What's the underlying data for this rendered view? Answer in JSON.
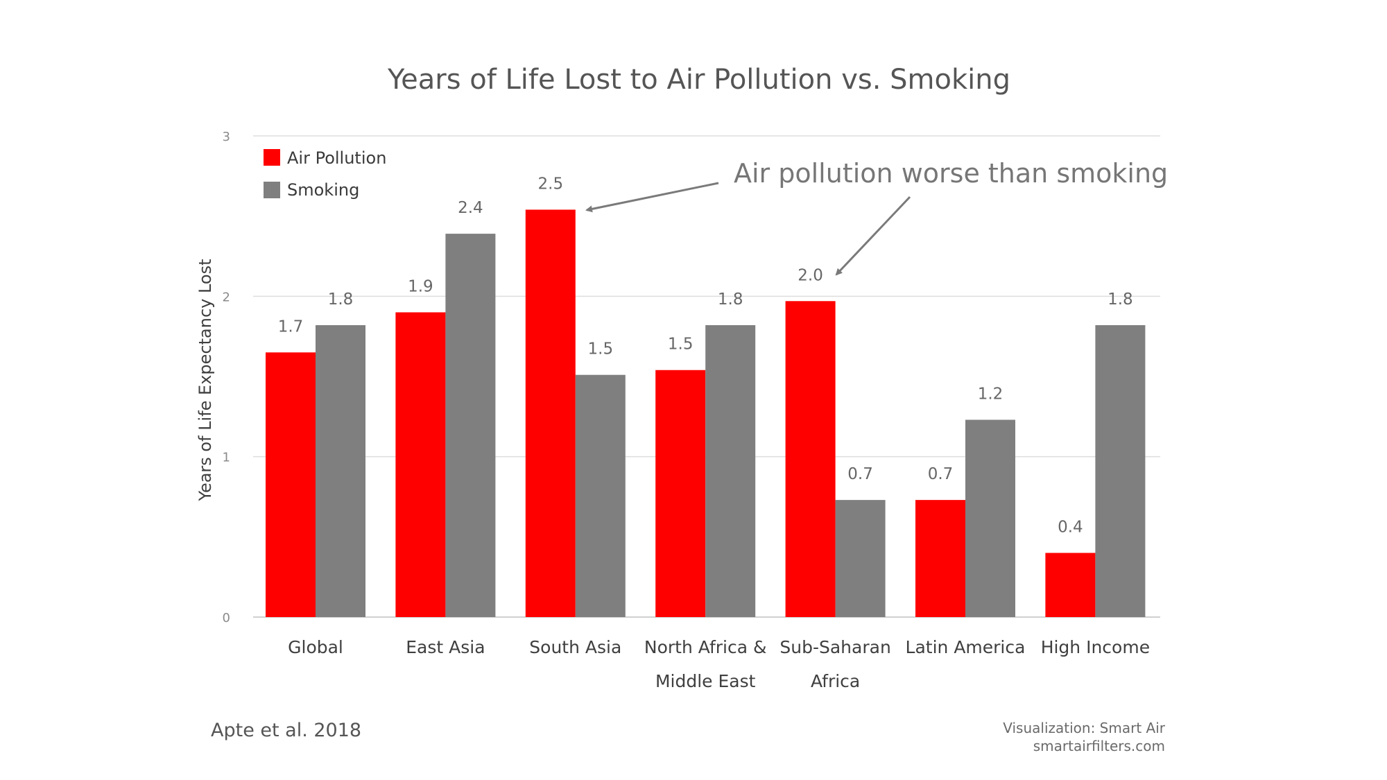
{
  "chart_data": {
    "type": "bar",
    "title": "Years of Life Lost to Air Pollution vs. Smoking",
    "ylabel": "Years of Life Expectancy Lost",
    "xlabel": "",
    "ylim": [
      0,
      3
    ],
    "yticks": [
      0,
      1,
      2,
      3
    ],
    "grid": true,
    "legend_position": "top-left",
    "categories": [
      [
        "Global"
      ],
      [
        "East Asia"
      ],
      [
        "South Asia"
      ],
      [
        "North Africa &",
        "Middle East"
      ],
      [
        "Sub-Saharan",
        "Africa"
      ],
      [
        "Latin America"
      ],
      [
        "High Income"
      ]
    ],
    "series": [
      {
        "name": "Air Pollution",
        "color": "#ff0000",
        "values": [
          1.65,
          1.9,
          2.54,
          1.54,
          1.97,
          0.73,
          0.4
        ],
        "labels": [
          "1.7",
          "1.9",
          "2.5",
          "1.5",
          "2.0",
          "0.7",
          "0.4"
        ]
      },
      {
        "name": "Smoking",
        "color": "#7f7f7f",
        "values": [
          1.82,
          2.39,
          1.51,
          1.82,
          0.73,
          1.23,
          1.82
        ],
        "labels": [
          "1.8",
          "2.4",
          "1.5",
          "1.8",
          "0.7",
          "1.2",
          "1.8"
        ]
      }
    ],
    "annotation": {
      "text": "Air pollution worse than smoking",
      "points_to": [
        "South Asia",
        "Sub-Saharan Africa"
      ]
    }
  },
  "footer": {
    "source": "Apte et al. 2018",
    "credit_line1": "Visualization: Smart Air",
    "credit_line2": "smartairfilters.com"
  }
}
